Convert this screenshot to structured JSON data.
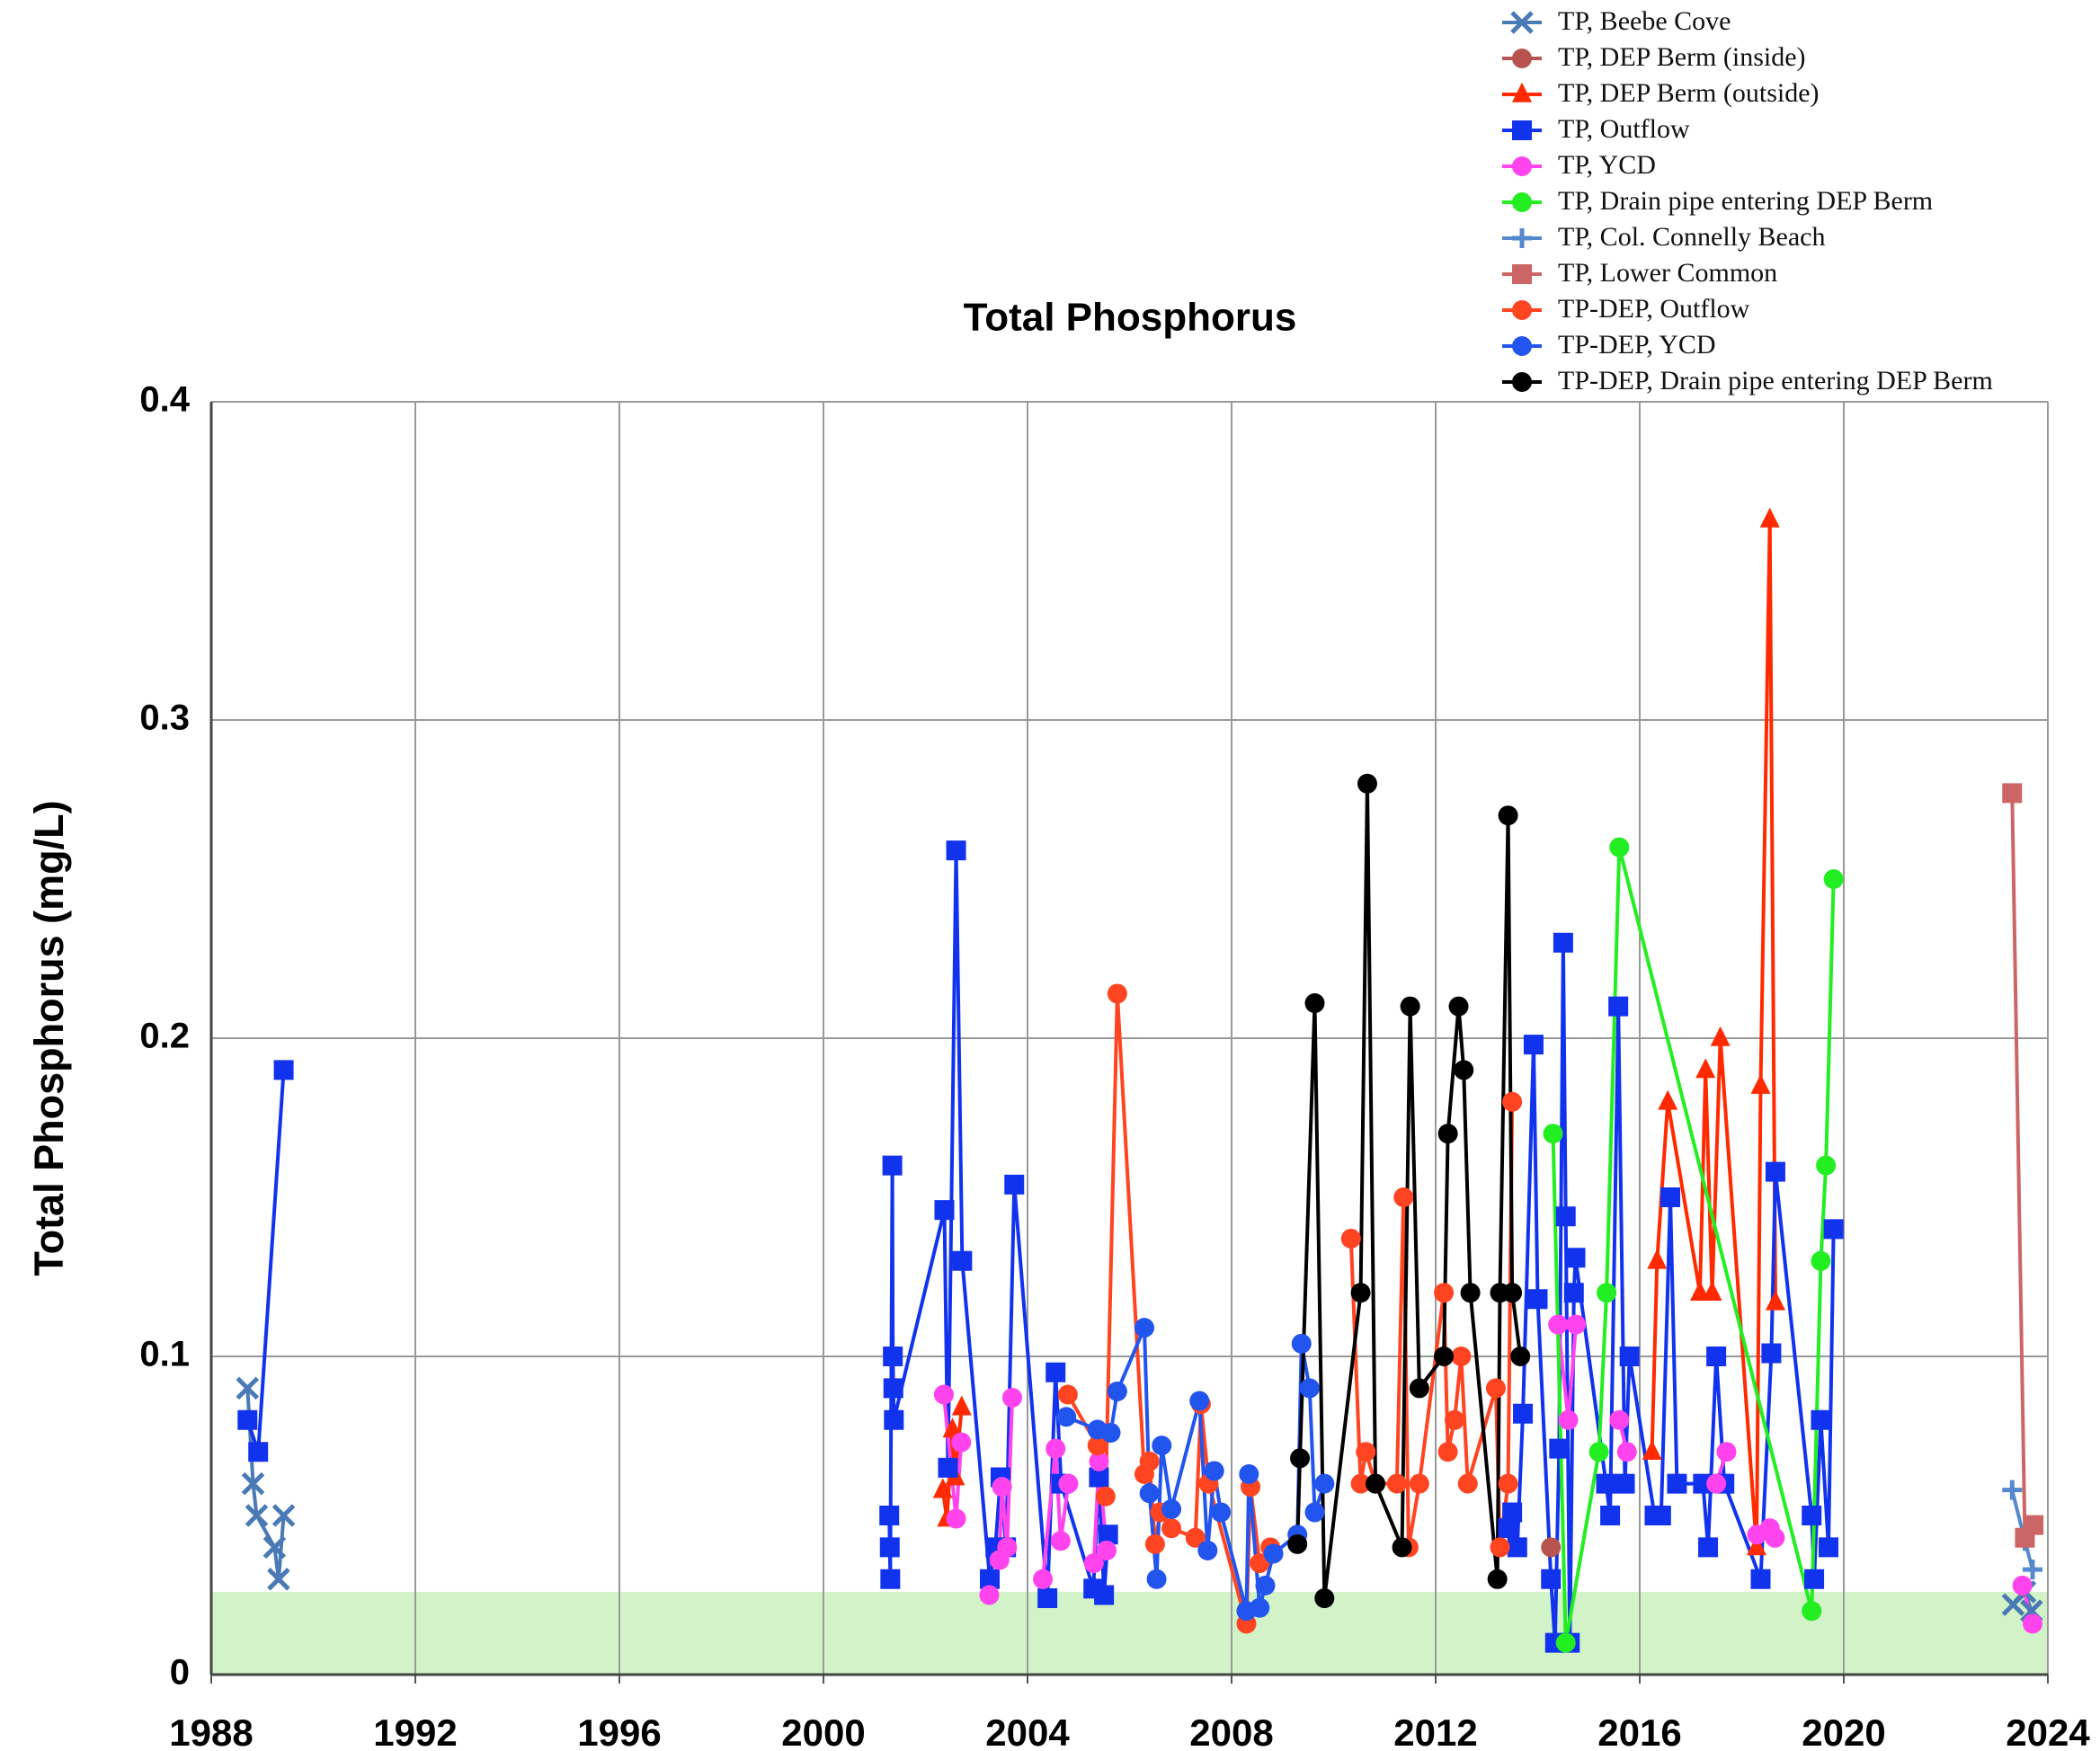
{
  "chart_data": {
    "type": "line",
    "title": "Total Phosphorus",
    "y_label": "Total Phosphorus (mg/L)",
    "xlim": [
      1988,
      2024
    ],
    "xticks": [
      1988,
      1992,
      1996,
      2000,
      2004,
      2008,
      2012,
      2016,
      2020,
      2024
    ],
    "ylim": [
      0,
      0.4
    ],
    "yticks": [
      0,
      0.1,
      0.2,
      0.3,
      0.4
    ],
    "grid": true,
    "target_band": {
      "range": [
        0,
        0.026
      ],
      "color": "#d2f2c8"
    },
    "legend": "top-right",
    "series": [
      {
        "name": "TP, Beebe Cove",
        "color": "#4a7ab5",
        "marker": "x",
        "x": [
          1988.71,
          1988.82,
          1988.89,
          1989.24,
          1989.32,
          1989.42,
          null,
          2023.32,
          2023.55,
          2023.68
        ],
        "values": [
          0.09,
          0.06,
          0.05,
          0.04,
          0.03,
          0.05,
          null,
          0.022,
          0.026,
          0.02
        ]
      },
      {
        "name": "TP, DEP Berm (inside)",
        "color": "#b85450",
        "marker": "circle",
        "x": [
          2014.26
        ],
        "values": [
          0.04
        ]
      },
      {
        "name": "TP, DEP Berm (outside)",
        "color": "#ff2a00",
        "marker": "triangle",
        "x": [
          2002.34,
          2002.42,
          2002.53,
          2002.58,
          2002.71,
          null,
          2016.24,
          2016.34,
          2016.55,
          2017.18,
          2017.29,
          2017.42,
          2017.58,
          2018.29,
          2018.37,
          2018.55,
          2018.66
        ],
        "values": [
          0.058,
          0.049,
          0.077,
          0.062,
          0.084,
          null,
          0.07,
          0.13,
          0.18,
          0.12,
          0.19,
          0.12,
          0.2,
          0.04,
          0.185,
          0.363,
          0.117
        ]
      },
      {
        "name": "TP, Outflow",
        "color": "#1133ee",
        "marker": "square",
        "x": [
          1988.71,
          1988.92,
          1989.42,
          null,
          2001.29,
          2001.3,
          2001.31,
          2001.35,
          2001.36,
          2001.37,
          2001.38,
          2002.37,
          2002.44,
          2002.6,
          2002.72,
          2003.26,
          2003.37,
          2003.47,
          2003.58,
          2003.74,
          2004.39,
          2004.55,
          2004.66,
          2005.29,
          2005.4,
          2005.5,
          2005.58,
          null,
          2013.42,
          2013.5,
          2013.6,
          2013.71,
          2013.92,
          2014.0,
          2014.26,
          2014.34,
          2014.42,
          2014.5,
          2014.55,
          2014.63,
          2014.71,
          2014.74,
          2015.34,
          2015.42,
          2015.58,
          2015.71,
          2015.8,
          2016.29,
          2016.42,
          2016.6,
          2016.73,
          2017.24,
          2017.34,
          2017.5,
          2017.66,
          2018.37,
          2018.58,
          2018.66,
          2019.37,
          2019.42,
          2019.55,
          2019.7,
          2019.8
        ],
        "values": [
          0.08,
          0.07,
          0.19,
          null,
          0.05,
          0.04,
          0.03,
          0.16,
          0.1,
          0.09,
          0.08,
          0.146,
          0.065,
          0.259,
          0.13,
          0.03,
          0.04,
          0.062,
          0.04,
          0.154,
          0.024,
          0.095,
          0.06,
          0.027,
          0.062,
          0.025,
          0.044,
          null,
          0.046,
          0.051,
          0.04,
          0.082,
          0.198,
          0.118,
          0.03,
          0.01,
          0.071,
          0.23,
          0.144,
          0.01,
          0.12,
          0.131,
          0.06,
          0.05,
          0.21,
          0.06,
          0.1,
          0.05,
          0.05,
          0.15,
          0.06,
          0.06,
          0.04,
          0.1,
          0.06,
          0.03,
          0.101,
          0.158,
          0.05,
          0.03,
          0.08,
          0.04,
          0.14
        ]
      },
      {
        "name": "TP, YCD",
        "color": "#ff44ee",
        "marker": "circle",
        "x": [
          2002.36,
          2002.6,
          2002.7,
          null,
          2003.25,
          2003.45,
          2003.5,
          2003.6,
          2003.7,
          null,
          2004.3,
          2004.55,
          2004.65,
          2004.8,
          null,
          2005.3,
          2005.4,
          2005.55,
          null,
          2014.4,
          2014.6,
          2014.75,
          null,
          2015.6,
          2015.75,
          null,
          2017.5,
          2017.7,
          null,
          2018.3,
          2018.55,
          2018.65,
          null,
          2023.5,
          2023.7
        ],
        "values": [
          0.088,
          0.049,
          0.073,
          null,
          0.025,
          0.036,
          0.059,
          0.04,
          0.087,
          null,
          0.03,
          0.071,
          0.042,
          0.06,
          null,
          0.035,
          0.067,
          0.039,
          null,
          0.11,
          0.08,
          0.11,
          null,
          0.08,
          0.07,
          null,
          0.06,
          0.07,
          null,
          0.044,
          0.046,
          0.043,
          null,
          0.028,
          0.016
        ]
      },
      {
        "name": "TP, Drain pipe entering DEP Berm",
        "color": "#22ee22",
        "marker": "circle",
        "x": [
          2014.3,
          2014.55,
          2015.2,
          2015.35,
          2015.6,
          2019.37,
          2019.55,
          2019.65,
          2019.8
        ],
        "values": [
          0.17,
          0.01,
          0.07,
          0.12,
          0.26,
          0.02,
          0.13,
          0.16,
          0.25
        ]
      },
      {
        "name": "TP, Col. Connelly Beach",
        "color": "#5588cc",
        "marker": "plus",
        "x": [
          2023.3,
          2023.55,
          2023.7
        ],
        "values": [
          0.058,
          0.042,
          0.033
        ]
      },
      {
        "name": "TP, Lower Common",
        "color": "#cc6666",
        "marker": "square",
        "x": [
          2023.3,
          2023.55,
          2023.72
        ],
        "values": [
          0.277,
          0.043,
          0.047
        ]
      },
      {
        "name": "TP-DEP, Outflow",
        "color": "#ff4422",
        "marker": "circle",
        "x": [
          2004.79,
          2005.37,
          2005.53,
          2005.76,
          2006.29,
          2006.39,
          2006.5,
          2006.6,
          2006.82,
          2007.29,
          2007.4,
          2007.55,
          2008.29,
          2008.37,
          2008.55,
          2008.76,
          null,
          2010.34,
          2010.53,
          2010.63,
          2010.82,
          2011.24,
          2011.37,
          2011.47,
          2011.68,
          2012.16,
          2012.24,
          2012.37,
          2012.5,
          2012.63,
          2013.18,
          2013.26,
          2013.42,
          2013.5
        ],
        "values": [
          0.088,
          0.072,
          0.056,
          0.214,
          0.063,
          0.067,
          0.041,
          0.051,
          0.046,
          0.043,
          0.085,
          0.06,
          0.016,
          0.059,
          0.035,
          0.04,
          null,
          0.137,
          0.06,
          0.07,
          0.06,
          0.06,
          0.15,
          0.04,
          0.06,
          0.12,
          0.07,
          0.08,
          0.1,
          0.06,
          0.09,
          0.04,
          0.06,
          0.18
        ]
      },
      {
        "name": "TP-DEP, YCD",
        "color": "#2255ee",
        "marker": "circle",
        "x": [
          2004.76,
          2005.37,
          2005.63,
          2005.76,
          2006.29,
          2006.39,
          2006.53,
          2006.63,
          2006.82,
          2007.37,
          2007.53,
          2007.66,
          2007.79,
          2008.29,
          2008.34,
          2008.55,
          2008.66,
          2008.82,
          2009.29,
          2009.37,
          2009.53,
          2009.63,
          2009.82
        ],
        "values": [
          0.081,
          0.077,
          0.076,
          0.089,
          0.109,
          0.057,
          0.03,
          0.072,
          0.052,
          0.086,
          0.039,
          0.064,
          0.051,
          0.02,
          0.063,
          0.021,
          0.028,
          0.038,
          0.044,
          0.104,
          0.09,
          0.051,
          0.06
        ]
      },
      {
        "name": "TP-DEP, Drain pipe entering DEP Berm",
        "color": "#000000",
        "marker": "circle",
        "x": [
          2009.29,
          2009.34,
          2009.63,
          2009.82,
          2010.53,
          2010.66,
          2010.82,
          2011.34,
          2011.5,
          2011.68,
          2012.16,
          2012.24,
          2012.45,
          2012.55,
          2012.68,
          2013.21,
          2013.26,
          2013.42,
          2013.5,
          2013.66
        ],
        "values": [
          0.041,
          0.068,
          0.211,
          0.024,
          0.12,
          0.28,
          0.06,
          0.04,
          0.21,
          0.09,
          0.1,
          0.17,
          0.21,
          0.19,
          0.12,
          0.03,
          0.12,
          0.27,
          0.12,
          0.1
        ]
      }
    ]
  }
}
